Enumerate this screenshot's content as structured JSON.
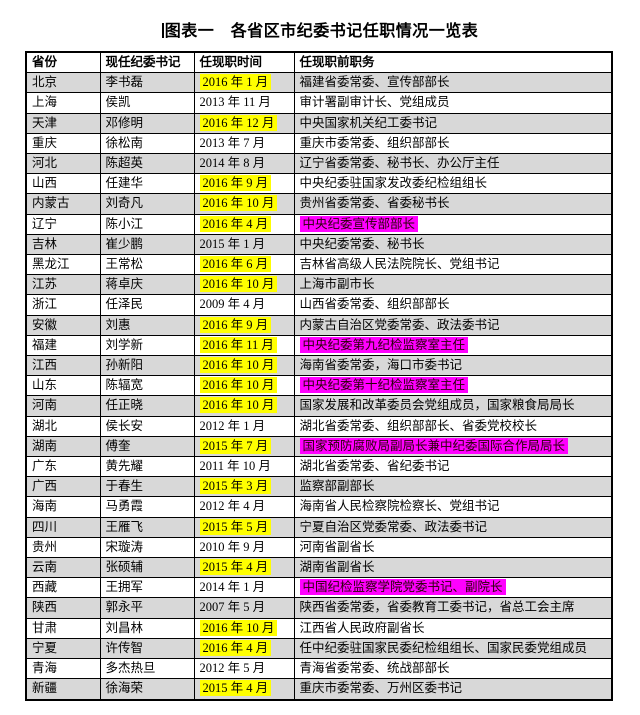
{
  "title": "图表一　各省区市纪委书记任职情况一览表",
  "colors": {
    "highlight_yellow": "#ffff00",
    "highlight_magenta": "#ff00ff",
    "row_stripe_gray": "#d8d8d8",
    "border_black": "#000000"
  },
  "table": {
    "headers": [
      "省份",
      "现任纪委书记",
      "任现职时间",
      "任现职前职务"
    ],
    "rows": [
      {
        "province": "北京",
        "secretary": "李书磊",
        "date": "2016 年 1 月",
        "date_highlight": true,
        "prev_position": "福建省委常委、宣传部部长",
        "prev_highlight": false
      },
      {
        "province": "上海",
        "secretary": "侯凯",
        "date": "2013 年 11 月",
        "date_highlight": false,
        "prev_position": "审计署副审计长、党组成员",
        "prev_highlight": false
      },
      {
        "province": "天津",
        "secretary": "邓修明",
        "date": "2016 年 12 月",
        "date_highlight": true,
        "prev_position": "中央国家机关纪工委书记",
        "prev_highlight": false
      },
      {
        "province": "重庆",
        "secretary": "徐松南",
        "date": "2013 年 7 月",
        "date_highlight": false,
        "prev_position": "重庆市委常委、组织部部长",
        "prev_highlight": false
      },
      {
        "province": "河北",
        "secretary": "陈超英",
        "date": "2014 年 8 月",
        "date_highlight": false,
        "prev_position": "辽宁省委常委、秘书长、办公厅主任",
        "prev_highlight": false
      },
      {
        "province": "山西",
        "secretary": "任建华",
        "date": "2016 年 9 月",
        "date_highlight": true,
        "prev_position": "中央纪委驻国家发改委纪检组组长",
        "prev_highlight": false
      },
      {
        "province": "内蒙古",
        "secretary": "刘奇凡",
        "date": "2016 年 10 月",
        "date_highlight": true,
        "prev_position": "贵州省委常委、省委秘书长",
        "prev_highlight": false
      },
      {
        "province": "辽宁",
        "secretary": "陈小江",
        "date": "2016 年 4 月",
        "date_highlight": true,
        "prev_position": "中央纪委宣传部部长",
        "prev_highlight": true
      },
      {
        "province": "吉林",
        "secretary": "崔少鹏",
        "date": "2015 年 1 月",
        "date_highlight": false,
        "prev_position": "中央纪委常委、秘书长",
        "prev_highlight": false
      },
      {
        "province": "黑龙江",
        "secretary": "王常松",
        "date": "2016 年 6 月",
        "date_highlight": true,
        "prev_position": "吉林省高级人民法院院长、党组书记",
        "prev_highlight": false
      },
      {
        "province": "江苏",
        "secretary": "蒋卓庆",
        "date": "2016 年 10 月",
        "date_highlight": true,
        "prev_position": "上海市副市长",
        "prev_highlight": false
      },
      {
        "province": "浙江",
        "secretary": "任泽民",
        "date": "2009 年 4 月",
        "date_highlight": false,
        "prev_position": "山西省委常委、组织部部长",
        "prev_highlight": false
      },
      {
        "province": "安徽",
        "secretary": "刘惠",
        "date": "2016 年 9 月",
        "date_highlight": true,
        "prev_position": "内蒙古自治区党委常委、政法委书记",
        "prev_highlight": false
      },
      {
        "province": "福建",
        "secretary": "刘学新",
        "date": "2016 年 11 月",
        "date_highlight": true,
        "prev_position": "中央纪委第九纪检监察室主任",
        "prev_highlight": true
      },
      {
        "province": "江西",
        "secretary": "孙新阳",
        "date": "2016 年 10 月",
        "date_highlight": true,
        "prev_position": "海南省委常委，海口市委书记",
        "prev_highlight": false
      },
      {
        "province": "山东",
        "secretary": "陈辐宽",
        "date": "2016 年 10 月",
        "date_highlight": true,
        "prev_position": "中央纪委第十纪检监察室主任",
        "prev_highlight": true
      },
      {
        "province": "河南",
        "secretary": "任正晓",
        "date": "2016 年 10 月",
        "date_highlight": true,
        "prev_position": "国家发展和改革委员会党组成员，国家粮食局局长",
        "prev_highlight": false
      },
      {
        "province": "湖北",
        "secretary": "侯长安",
        "date": "2012 年 1 月",
        "date_highlight": false,
        "prev_position": "湖北省委常委、组织部部长、省委党校校长",
        "prev_highlight": false
      },
      {
        "province": "湖南",
        "secretary": "傅奎",
        "date": "2015 年 7 月",
        "date_highlight": true,
        "prev_position": "国家预防腐败局副局长兼中纪委国际合作局局长",
        "prev_highlight": true
      },
      {
        "province": "广东",
        "secretary": "黄先耀",
        "date": "2011 年 10 月",
        "date_highlight": false,
        "prev_position": "湖北省委常委、省纪委书记",
        "prev_highlight": false
      },
      {
        "province": "广西",
        "secretary": "于春生",
        "date": "2015 年 3 月",
        "date_highlight": true,
        "prev_position": "监察部副部长",
        "prev_highlight": false
      },
      {
        "province": "海南",
        "secretary": "马勇霞",
        "date": "2012 年 4 月",
        "date_highlight": false,
        "prev_position": "海南省人民检察院检察长、党组书记",
        "prev_highlight": false
      },
      {
        "province": "四川",
        "secretary": "王雁飞",
        "date": "2015 年 5 月",
        "date_highlight": true,
        "prev_position": "宁夏自治区党委常委、政法委书记",
        "prev_highlight": false
      },
      {
        "province": "贵州",
        "secretary": "宋璇涛",
        "date": "2010 年 9 月",
        "date_highlight": false,
        "prev_position": "河南省副省长",
        "prev_highlight": false
      },
      {
        "province": "云南",
        "secretary": "张硕辅",
        "date": "2015 年 4 月",
        "date_highlight": true,
        "prev_position": "湖南省副省长",
        "prev_highlight": false
      },
      {
        "province": "西藏",
        "secretary": "王拥军",
        "date": "2014 年 1 月",
        "date_highlight": false,
        "prev_position": "中国纪检监察学院党委书记、副院长",
        "prev_highlight": true
      },
      {
        "province": "陕西",
        "secretary": "郭永平",
        "date": "2007 年 5 月",
        "date_highlight": false,
        "prev_position": "陕西省委常委，省委教育工委书记，省总工会主席",
        "prev_highlight": false
      },
      {
        "province": "甘肃",
        "secretary": "刘昌林",
        "date": "2016 年 10 月",
        "date_highlight": true,
        "prev_position": "江西省人民政府副省长",
        "prev_highlight": false
      },
      {
        "province": "宁夏",
        "secretary": "许传智",
        "date": "2016 年 4 月",
        "date_highlight": true,
        "prev_position": "任中纪委驻国家民委纪检组组长、国家民委党组成员",
        "prev_highlight": false
      },
      {
        "province": "青海",
        "secretary": "多杰热旦",
        "date": "2012 年 5 月",
        "date_highlight": false,
        "prev_position": "青海省委常委、统战部部长",
        "prev_highlight": false
      },
      {
        "province": "新疆",
        "secretary": "徐海荣",
        "date": "2015 年 4 月",
        "date_highlight": true,
        "prev_position": "重庆市委常委、万州区委书记",
        "prev_highlight": false
      }
    ]
  }
}
